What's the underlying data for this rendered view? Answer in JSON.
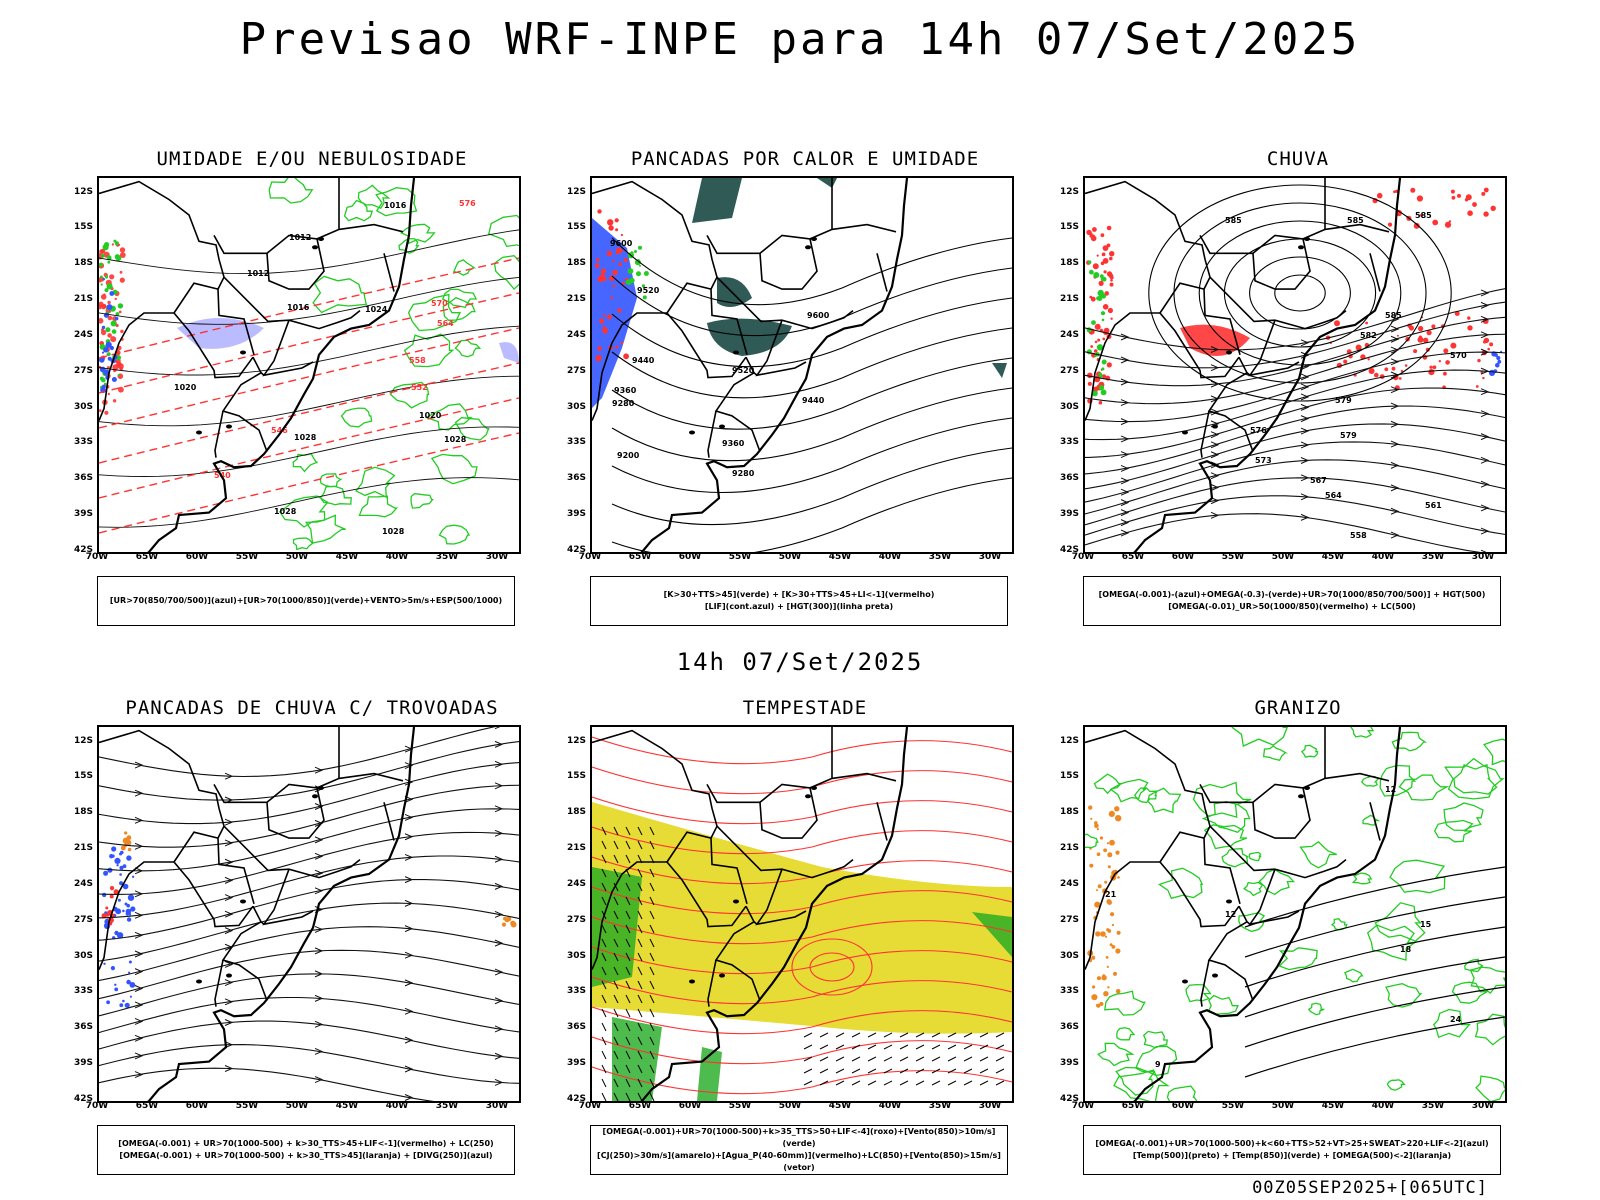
{
  "title": "Previsao WRF-INPE  para 14h 07/Set/2025",
  "mid_title": "14h 07/Set/2025",
  "footer": "00Z05SEP2025+[065UTC]",
  "axes": {
    "lat_labels": [
      "12S",
      "15S",
      "18S",
      "21S",
      "24S",
      "27S",
      "30S",
      "33S",
      "36S",
      "39S",
      "42S"
    ],
    "lon_labels": [
      "70W",
      "65W",
      "60W",
      "55W",
      "50W",
      "45W",
      "40W",
      "35W",
      "30W"
    ]
  },
  "colors": {
    "green": "#22cc22",
    "red": "#ff3333",
    "blue": "#3355ff",
    "lavender": "#aaaaff",
    "dark_teal": "#2f5a55",
    "yellow": "#e6d92a",
    "orange": "#ee8822"
  },
  "panels": [
    {
      "title": "UMIDADE E/OU NEBULOSIDADE",
      "legend": [
        "[UR>70(850/700/500)](azul)+[UR>70(1000/850)](verde)+VENTO>5m/s+ESP(500/1000)"
      ],
      "labels": [
        "1016",
        "1012",
        "1012",
        "1016",
        "1020",
        "1020",
        "1024",
        "1028",
        "1028",
        "1028",
        "1028",
        "576",
        "570",
        "564",
        "558",
        "552",
        "546",
        "540"
      ]
    },
    {
      "title": "PANCADAS POR CALOR E UMIDADE",
      "legend": [
        "[K>30+TTS>45](verde) + [K>30+TTS>45+LI<-1](vermelho)",
        "[LIF](cont.azul) + [HGT(300)](linha preta)"
      ],
      "labels": [
        "9600",
        "9520",
        "9440",
        "9360",
        "9280",
        "9200",
        "9600",
        "9520",
        "9440",
        "9360",
        "9280"
      ]
    },
    {
      "title": "CHUVA",
      "legend": [
        "[OMEGA(-0.001)-(azul)+OMEGA(-0.3)-(verde)+UR>70(1000/850/700/500)] + HGT(500)",
        "[OMEGA(-0.01)_UR>50(1000/850)(vermelho) + LC(500)"
      ],
      "labels": [
        "585",
        "585",
        "585",
        "585",
        "582",
        "579",
        "579",
        "576",
        "573",
        "570",
        "567",
        "564",
        "561",
        "558"
      ]
    },
    {
      "title": "PANCADAS DE CHUVA C/ TROVOADAS",
      "legend": [
        "[OMEGA(-0.001) + UR>70(1000-500) + k>30_TTS>45+LIF<-1](vermelho) + LC(250)",
        "[OMEGA(-0.001) + UR>70(1000-500) + k>30_TTS>45](laranja) + [DIVG(250)](azul)"
      ],
      "labels": []
    },
    {
      "title": "TEMPESTADE",
      "legend": [
        "[OMEGA(-0.001)+UR>70(1000-500)+k>35_TTS>50+LIF<-4](roxo)+[Vento(850)>10m/s](verde)",
        "[CJ(250)>30m/s](amarelo)+[Agua_P(40-60mm)](vermelho)+LC(850)+[Vento(850)>15m/s](vetor)"
      ],
      "labels": []
    },
    {
      "title": "GRANIZO",
      "legend": [
        "[OMEGA(-0.001)+UR>70(1000-500)+k<60+TTS>52+VT>25+SWEAT>220+LIF<-2](azul)",
        "[Temp(500)](preto) + [Temp(850)](verde) + [OMEGA(500)<-2](laranja)"
      ],
      "labels": [
        "21",
        "12",
        "12",
        "15",
        "18",
        "24",
        "9"
      ]
    }
  ]
}
